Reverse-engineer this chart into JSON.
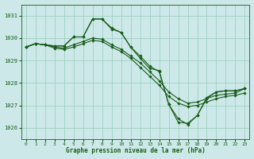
{
  "title": "Graphe pression niveau de la mer (hPa)",
  "background_color": "#cce8e8",
  "grid_color": "#99ccbb",
  "line_color": "#1a5c1a",
  "marker_color": "#1a5c1a",
  "xlim": [
    -0.5,
    23.5
  ],
  "ylim": [
    1025.5,
    1031.5
  ],
  "yticks": [
    1026,
    1027,
    1028,
    1029,
    1030,
    1031
  ],
  "xticks": [
    0,
    1,
    2,
    3,
    4,
    5,
    6,
    7,
    8,
    9,
    10,
    11,
    12,
    13,
    14,
    15,
    16,
    17,
    18,
    19,
    20,
    21,
    22,
    23
  ],
  "lines": [
    {
      "x": [
        0,
        1,
        2,
        3,
        4,
        5,
        6,
        7,
        8,
        9,
        10,
        11,
        12,
        13,
        14,
        15,
        16,
        17,
        18,
        19,
        20,
        21,
        22,
        23
      ],
      "y": [
        1029.6,
        1029.75,
        1029.7,
        1029.65,
        1029.65,
        1030.05,
        1030.05,
        1030.85,
        1030.85,
        1030.4,
        1030.25,
        1029.6,
        1029.1,
        1028.65,
        1028.55,
        1027.05,
        1026.4,
        1026.15,
        1026.55,
        1027.3,
        1027.6,
        1027.65,
        1027.65,
        1027.75
      ]
    },
    {
      "x": [
        0,
        1,
        2,
        3,
        4,
        5,
        6,
        7,
        8,
        9,
        10,
        11,
        12,
        13,
        14,
        15,
        16,
        17,
        18,
        19,
        20,
        21,
        22,
        23
      ],
      "y": [
        1029.6,
        1029.75,
        1029.7,
        1029.65,
        1029.65,
        1030.05,
        1030.05,
        1030.85,
        1030.85,
        1030.45,
        1030.25,
        1029.6,
        1029.2,
        1028.75,
        1028.5,
        1027.05,
        1026.25,
        1026.2,
        1026.55,
        1027.35,
        1027.6,
        1027.65,
        1027.65,
        1027.75
      ]
    },
    {
      "x": [
        0,
        1,
        2,
        3,
        4,
        5,
        6,
        7,
        8,
        9,
        10,
        11,
        12,
        13,
        14,
        15,
        16,
        17,
        18,
        19,
        20,
        21,
        22,
        23
      ],
      "y": [
        1029.6,
        1029.75,
        1029.7,
        1029.6,
        1029.55,
        1029.7,
        1029.85,
        1030.0,
        1029.95,
        1029.7,
        1029.5,
        1029.2,
        1028.9,
        1028.5,
        1028.1,
        1027.6,
        1027.3,
        1027.1,
        1027.15,
        1027.3,
        1027.45,
        1027.5,
        1027.55,
        1027.75
      ]
    },
    {
      "x": [
        0,
        1,
        2,
        3,
        4,
        5,
        6,
        7,
        8,
        9,
        10,
        11,
        12,
        13,
        14,
        15,
        16,
        17,
        18,
        19,
        20,
        21,
        22,
        23
      ],
      "y": [
        1029.6,
        1029.75,
        1029.7,
        1029.55,
        1029.5,
        1029.6,
        1029.75,
        1029.9,
        1029.85,
        1029.6,
        1029.4,
        1029.1,
        1028.7,
        1028.3,
        1027.9,
        1027.4,
        1027.1,
        1026.95,
        1027.0,
        1027.15,
        1027.3,
        1027.4,
        1027.45,
        1027.55
      ]
    }
  ],
  "figsize": [
    3.2,
    2.0
  ],
  "dpi": 100
}
